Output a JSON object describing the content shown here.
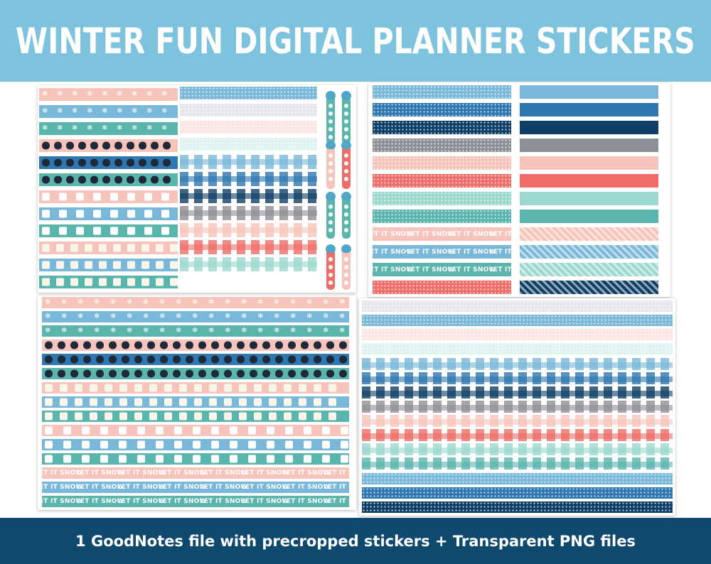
{
  "header": {
    "title": "WINTER FUN DIGITAL PLANNER STICKERS",
    "background": "#7ec3de"
  },
  "footer": {
    "caption": "1 GoodNotes file with precropped stickers + Transparent PNG files",
    "background": "#0f4a6e"
  },
  "strip_text": "LET IT SNOW",
  "palette": {
    "light_blue": "#7ab8d9",
    "blue": "#2e77b0",
    "navy": "#0f3f66",
    "grey": "#8d8f96",
    "pink": "#f6c4bb",
    "coral": "#ee6d68",
    "mint": "#9bd8cf",
    "teal": "#5ab5ad",
    "pale_pink": "#fbe6e2",
    "pale_grey": "#e6e7ec",
    "pale_mint": "#dff3f0"
  },
  "icons": {
    "snowflake": "❄",
    "penguin": "penguin-icon",
    "mug": "hot-cocoa-mug-icon",
    "marshmallow": "marshmallow-icon",
    "bird": "owl-bird-icon",
    "heart": "♥"
  }
}
